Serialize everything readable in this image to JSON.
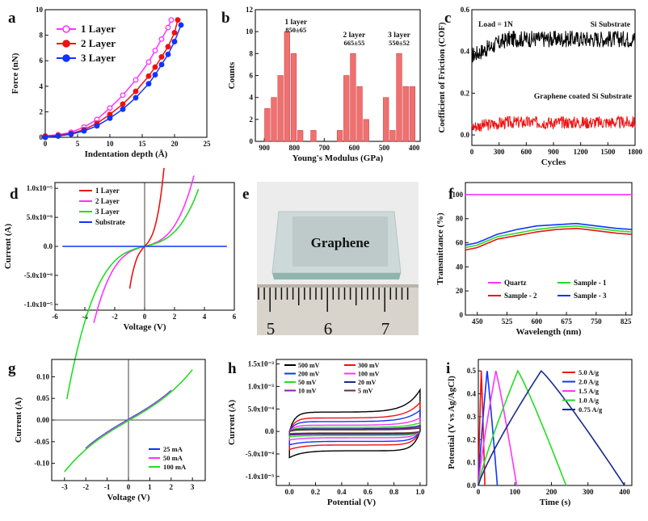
{
  "figure": {
    "colors": {
      "axis": "#111111",
      "magenta": "#ff33ff",
      "red": "#ee1111",
      "blue": "#1133ff",
      "green": "#22dd22",
      "black": "#000000",
      "bar": "#f07070"
    }
  },
  "chart_data": [
    {
      "panel": "a",
      "type": "line",
      "xlabel": "Indentation depth (Å)",
      "ylabel": "Force (nN)",
      "xlim": [
        0,
        25
      ],
      "ylim": [
        0,
        10
      ],
      "xticks": [
        0,
        5,
        10,
        15,
        20,
        25
      ],
      "yticks": [
        0,
        2,
        4,
        6,
        8,
        10
      ],
      "legend": [
        "1 Layer",
        "2 Layer",
        "3 Layer"
      ],
      "series": [
        {
          "name": "1 Layer",
          "color": "#ff33ff",
          "marker": "open",
          "x": [
            0,
            2,
            4,
            6,
            8,
            10,
            12,
            14,
            16,
            17,
            18,
            19,
            19.5
          ],
          "y": [
            0.1,
            0.2,
            0.4,
            0.8,
            1.4,
            2.3,
            3.3,
            4.5,
            5.9,
            6.8,
            7.7,
            8.6,
            9.2
          ]
        },
        {
          "name": "2 Layer",
          "color": "#ee1111",
          "marker": "filled",
          "x": [
            0,
            2,
            4,
            6,
            8,
            10,
            12,
            14,
            16,
            17,
            18,
            19,
            20,
            20.5
          ],
          "y": [
            0.1,
            0.15,
            0.3,
            0.6,
            1.1,
            1.8,
            2.6,
            3.6,
            4.8,
            5.5,
            6.3,
            7.1,
            8.2,
            9.2
          ]
        },
        {
          "name": "3 Layer",
          "color": "#1133ff",
          "marker": "filled",
          "x": [
            0,
            2,
            4,
            6,
            8,
            10,
            12,
            14,
            16,
            17,
            18,
            19,
            20,
            21
          ],
          "y": [
            0,
            0.1,
            0.25,
            0.5,
            0.9,
            1.5,
            2.2,
            3.1,
            4.2,
            4.9,
            5.7,
            6.5,
            7.5,
            8.8
          ]
        }
      ]
    },
    {
      "panel": "b",
      "type": "bar",
      "xlabel": "Young's Modulus (GPa)",
      "ylabel": "Counts",
      "xlim": [
        930,
        380
      ],
      "ylim": [
        0,
        12
      ],
      "xticks": [
        900,
        800,
        700,
        600,
        500,
        400
      ],
      "yticks": [
        0,
        2,
        4,
        6,
        8,
        10,
        12
      ],
      "bin_width": 22,
      "bins": [
        890,
        868,
        846,
        824,
        802,
        780,
        736,
        648,
        626,
        604,
        582,
        560,
        494,
        472,
        450,
        428,
        406
      ],
      "values": [
        3,
        4,
        6,
        10,
        8,
        1,
        1,
        1,
        6,
        8,
        5,
        2,
        4,
        1,
        8,
        5,
        5
      ],
      "annotations": [
        {
          "title": "1 layer",
          "value": "850±65",
          "x": 800
        },
        {
          "title": "2 layer",
          "value": "665±55",
          "x": 600
        },
        {
          "title": "3 layer",
          "value": "550±52",
          "x": 450
        }
      ]
    },
    {
      "panel": "c",
      "type": "line",
      "xlabel": "Cycles",
      "ylabel": "Coefficient of Friction (COF)",
      "xlim": [
        0,
        1800
      ],
      "ylim": [
        -0.05,
        0.6
      ],
      "xticks": [
        0,
        300,
        600,
        900,
        1200,
        1500,
        1800
      ],
      "yticks": [
        0.0,
        0.2,
        0.4,
        0.6
      ],
      "texts": [
        "Load = 1N",
        "Si Substrate",
        "Graphene coated Si Substrate"
      ],
      "series": [
        {
          "name": "Si Substrate",
          "color": "#000000",
          "mean_start": 0.38,
          "mean_end": 0.46,
          "noise": 0.04
        },
        {
          "name": "Graphene coated Si Substrate",
          "color": "#ee1111",
          "mean_start": 0.04,
          "mean_end": 0.06,
          "noise": 0.03
        }
      ]
    },
    {
      "panel": "d",
      "type": "line",
      "xlabel": "Voltage (V)",
      "ylabel": "Current (A)",
      "xlim": [
        -6,
        6
      ],
      "ylim": [
        -1.1,
        1.1
      ],
      "xticks": [
        -6,
        -4,
        -2,
        0,
        2,
        4,
        6
      ],
      "ytick_values": [
        -1,
        -0.5,
        0,
        0.5,
        1
      ],
      "ytick_labels": [
        "-1.0x10⁻⁵",
        "-5.0x10⁻⁶",
        "0.0",
        "5.0x10⁻⁶",
        "1.0x10⁻⁵"
      ],
      "legend": [
        "1 Layer",
        "2 Layer",
        "3 Layer",
        "Substrate"
      ],
      "series": [
        {
          "name": "1 Layer",
          "color": "#ee1111",
          "vmin": -1.0,
          "vmax": 1.3,
          "a": 0.28,
          "b": 0.45
        },
        {
          "name": "2 Layer",
          "color": "#ff33ff",
          "vmin": -3.4,
          "vmax": 3.3,
          "a": 0.07,
          "b": 0.0275
        },
        {
          "name": "3 Layer",
          "color": "#22dd22",
          "vmin": -5.2,
          "vmax": 3.6,
          "a": 0.06,
          "b": 0.0165
        },
        {
          "name": "Substrate",
          "color": "#1133ff",
          "vmin": -5.5,
          "vmax": 5.5,
          "a": 0,
          "b": 0
        }
      ]
    },
    {
      "panel": "e",
      "type": "photo",
      "label_text": "Graphene",
      "ruler_numbers": [
        "5",
        "6",
        "7"
      ]
    },
    {
      "panel": "f",
      "type": "line",
      "xlabel": "Wavelength (nm)",
      "ylabel": "Transmittance (%)",
      "xlim": [
        420,
        840
      ],
      "ylim": [
        0,
        110
      ],
      "xticks": [
        450,
        525,
        600,
        675,
        750,
        825
      ],
      "yticks": [
        0,
        20,
        40,
        60,
        80,
        100
      ],
      "legend": [
        "Quartz",
        "Sample - 1",
        "Sample - 2",
        "Sample - 3"
      ],
      "series": [
        {
          "name": "Quartz",
          "color": "#ff33ff",
          "x": [
            420,
            840
          ],
          "y": [
            100,
            100
          ]
        },
        {
          "name": "Sample - 1",
          "color": "#22dd22",
          "x": [
            420,
            450,
            500,
            550,
            600,
            650,
            700,
            750,
            800,
            840
          ],
          "y": [
            56,
            58,
            65,
            68,
            71,
            73,
            74,
            72,
            70,
            69
          ]
        },
        {
          "name": "Sample - 2",
          "color": "#ee1111",
          "x": [
            420,
            450,
            500,
            550,
            600,
            650,
            700,
            750,
            800,
            840
          ],
          "y": [
            54,
            56,
            63,
            66,
            69,
            71,
            72,
            70,
            68,
            67
          ]
        },
        {
          "name": "Sample - 3",
          "color": "#1133ff",
          "x": [
            420,
            450,
            500,
            550,
            600,
            650,
            700,
            750,
            800,
            840
          ],
          "y": [
            58,
            60,
            67,
            71,
            74,
            75,
            76,
            74,
            72,
            71
          ]
        }
      ]
    },
    {
      "panel": "g",
      "type": "line",
      "xlabel": "Voltage (V)",
      "ylabel": "Current (A)",
      "xlim": [
        -3.6,
        3.6
      ],
      "ylim": [
        -0.14,
        0.14
      ],
      "xticks": [
        -3,
        -2,
        -1,
        0,
        1,
        2,
        3
      ],
      "yticks": [
        -0.1,
        -0.05,
        0.0,
        0.05,
        0.1
      ],
      "ytick_labels": [
        "-0.10",
        "-0.05",
        "0.00",
        "0.05",
        "0.10"
      ],
      "legend": [
        "25 mA",
        "50 mA",
        "100 mA"
      ],
      "series": [
        {
          "name": "25 mA",
          "color": "#1133ff",
          "vmin": -2.0,
          "vmax": 2.0
        },
        {
          "name": "50 mA",
          "color": "#ff33ff",
          "vmin": -2.0,
          "vmax": 2.0
        },
        {
          "name": "100 mA",
          "color": "#22dd22",
          "vmin": -3.0,
          "vmax": 3.0
        }
      ]
    },
    {
      "panel": "h",
      "type": "line",
      "xlabel": "Potential (V)",
      "ylabel": "Current (A)",
      "xlim": [
        -0.1,
        1.05
      ],
      "ylim": [
        -1.2,
        1.6
      ],
      "xticks": [
        0.0,
        0.2,
        0.4,
        0.6,
        0.8,
        1.0
      ],
      "xtick_labels": [
        "0.0",
        "0.2",
        "0.4",
        "0.6",
        "0.8",
        "1.0"
      ],
      "ytick_values": [
        -1.0,
        -0.5,
        0,
        0.5,
        1.0,
        1.5
      ],
      "ytick_labels": [
        "-1.0x10⁻³",
        "-5.0x10⁻⁴",
        "0.0",
        "5.0x10⁻⁴",
        "1.0x10⁻³",
        "1.5x10⁻³"
      ],
      "legend": [
        "500 mV",
        "50 mV",
        "300 mV",
        "20 mV",
        "200 mV",
        "10 mV",
        "100 mV",
        "5 mV"
      ],
      "series": [
        {
          "name": "500 mV",
          "color": "#000000",
          "amp": 0.43
        },
        {
          "name": "300 mV",
          "color": "#ee1111",
          "amp": 0.3
        },
        {
          "name": "200 mV",
          "color": "#1133ff",
          "amp": 0.22
        },
        {
          "name": "100 mV",
          "color": "#ff33ff",
          "amp": 0.14
        },
        {
          "name": "50 mV",
          "color": "#22dd22",
          "amp": 0.09
        },
        {
          "name": "20 mV",
          "color": "#1a2a8a",
          "amp": 0.06
        },
        {
          "name": "10 mV",
          "color": "#8822aa",
          "amp": 0.045
        },
        {
          "name": "5 mV",
          "color": "#663333",
          "amp": 0.035
        }
      ]
    },
    {
      "panel": "i",
      "type": "line",
      "xlabel": "Time (s)",
      "ylabel": "Potential (V vs Ag/AgCl)",
      "xlim": [
        0,
        420
      ],
      "ylim": [
        0,
        0.55
      ],
      "xticks": [
        0,
        100,
        200,
        300,
        400
      ],
      "yticks": [
        0.0,
        0.1,
        0.2,
        0.3,
        0.4,
        0.5
      ],
      "legend": [
        "5.0 A/g",
        "2.0 A/g",
        "1.5 A/g",
        "1.0 A/g",
        "0.75 A/g"
      ],
      "series": [
        {
          "name": "5.0 A/g",
          "color": "#ee1111",
          "start": 0,
          "peak": 8,
          "end": 18
        },
        {
          "name": "2.0 A/g",
          "color": "#1133ff",
          "start": 0,
          "peak": 24,
          "end": 52
        },
        {
          "name": "1.5 A/g",
          "color": "#ff33ff",
          "start": 0,
          "peak": 48,
          "end": 105
        },
        {
          "name": "1.0 A/g",
          "color": "#22dd22",
          "start": 0,
          "peak": 108,
          "end": 240
        },
        {
          "name": "0.75 A/g",
          "color": "#1a2a8a",
          "start": 0,
          "peak": 172,
          "end": 400
        }
      ]
    }
  ]
}
